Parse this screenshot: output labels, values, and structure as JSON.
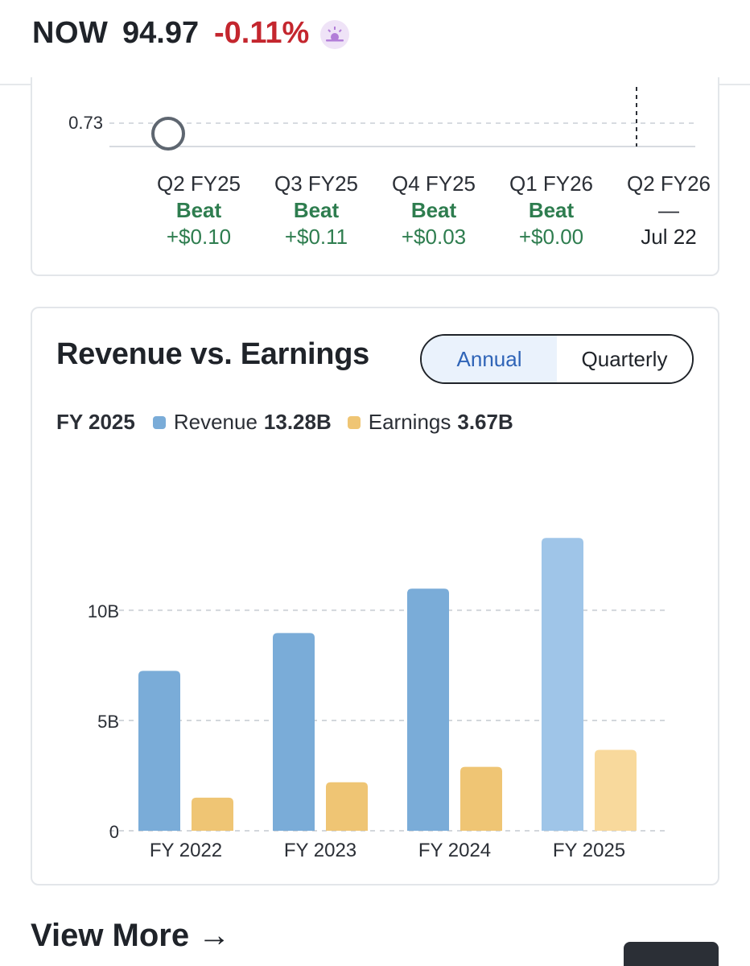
{
  "header": {
    "ticker": "NOW",
    "price": "94.97",
    "change": "-0.11%",
    "market_icon": "sun-icon"
  },
  "eps": {
    "y_label": "0.73",
    "quarters": [
      {
        "label": "Q2 FY25",
        "result": "Beat",
        "amount": "+$0.10"
      },
      {
        "label": "Q3 FY25",
        "result": "Beat",
        "amount": "+$0.11"
      },
      {
        "label": "Q4 FY25",
        "result": "Beat",
        "amount": "+$0.03"
      },
      {
        "label": "Q1 FY26",
        "result": "Beat",
        "amount": "+$0.00"
      },
      {
        "label": "Q2 FY26",
        "result": "—",
        "amount": "Jul 22"
      }
    ]
  },
  "revenue": {
    "title": "Revenue vs. Earnings",
    "toggle": {
      "annual": "Annual",
      "quarterly": "Quarterly",
      "selected": "Annual"
    },
    "legend": {
      "year": "FY 2025",
      "revenue_label": "Revenue",
      "revenue_value": "13.28B",
      "earnings_label": "Earnings",
      "earnings_value": "3.67B"
    },
    "colors": {
      "revenue": "#7aacd8",
      "revenue_highlight": "#9fc5e8",
      "earnings": "#efc574",
      "earnings_highlight": "#f8d99c"
    }
  },
  "chart_data": {
    "type": "bar",
    "categories": [
      "FY 2022",
      "FY 2023",
      "FY 2024",
      "FY 2025"
    ],
    "series": [
      {
        "name": "Revenue",
        "values": [
          7.25,
          8.97,
          10.98,
          13.28
        ]
      },
      {
        "name": "Earnings",
        "values": [
          1.5,
          2.2,
          2.9,
          3.67
        ]
      }
    ],
    "yticks": [
      {
        "value": 0,
        "label": "0"
      },
      {
        "value": 5,
        "label": "5B"
      },
      {
        "value": 10,
        "label": "10B"
      }
    ],
    "ylim": [
      0,
      15.7
    ],
    "grid": true,
    "legend_position": "top-left"
  },
  "footer": {
    "view_more": "View More →"
  }
}
